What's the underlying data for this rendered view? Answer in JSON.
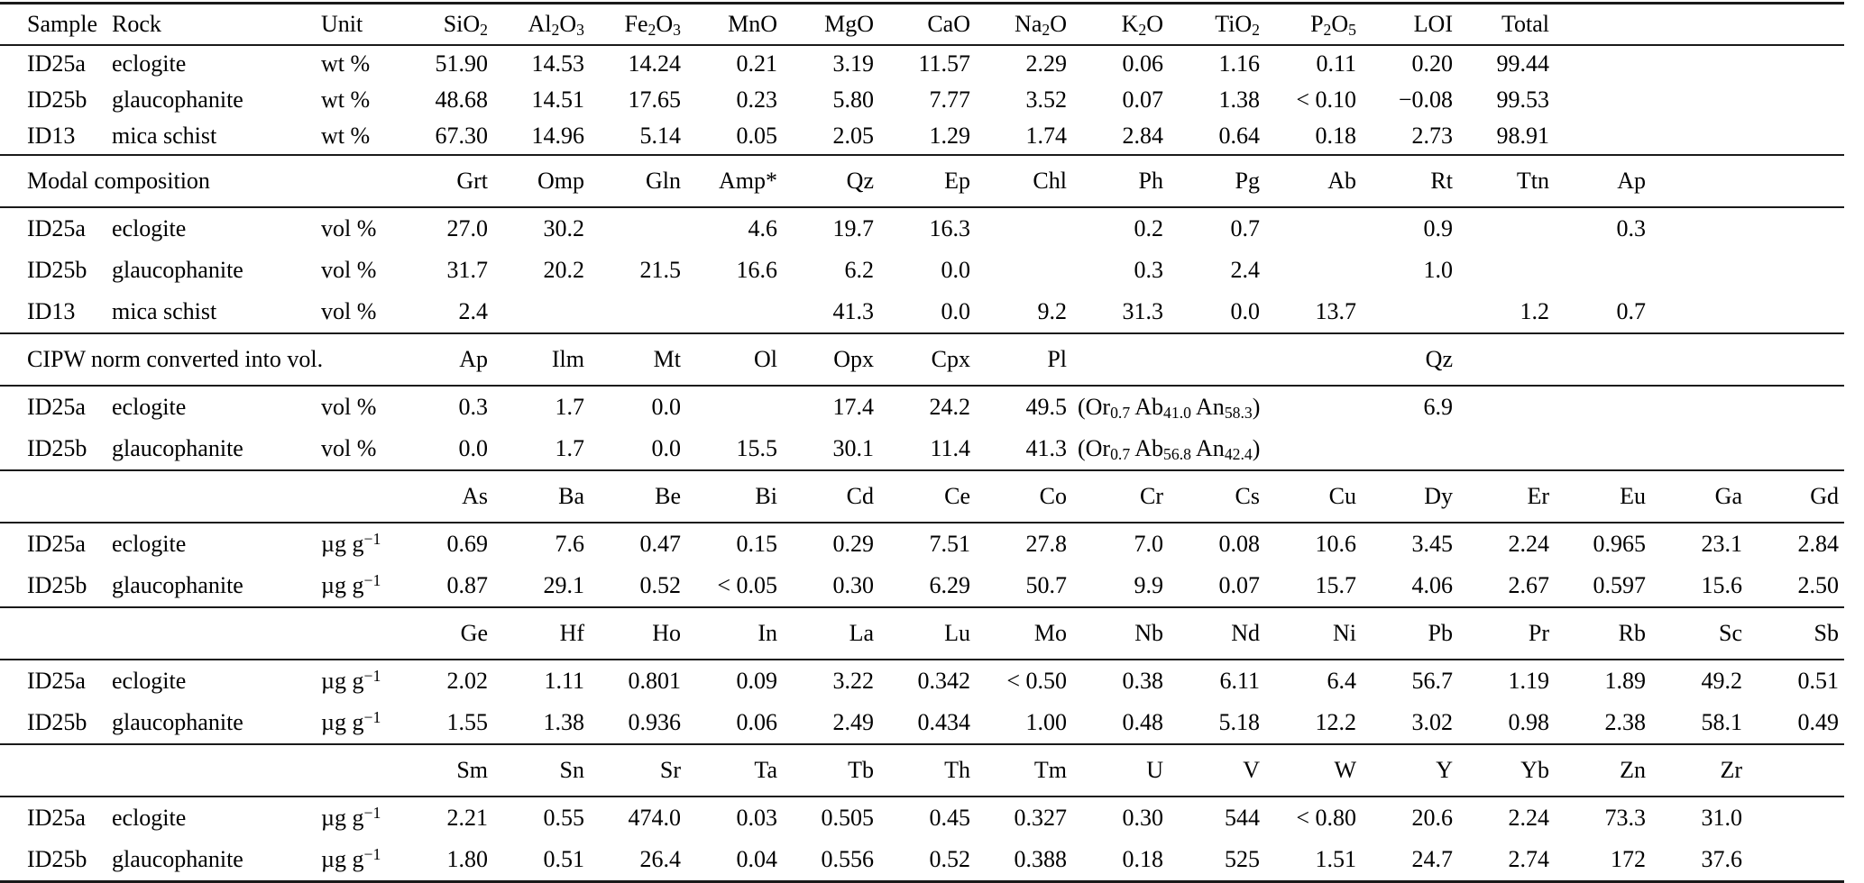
{
  "table": {
    "sections": [
      {
        "id": "major-oxides",
        "label_headers": [
          "Sample",
          "Rock",
          "Unit"
        ],
        "columns": [
          "SiO_2_",
          "Al_2_O_3_",
          "Fe_2_O_3_",
          "MnO",
          "MgO",
          "CaO",
          "Na_2_O",
          "K_2_O",
          "TiO_2_",
          "P_2_O_5_",
          "LOI",
          "Total",
          "",
          "",
          ""
        ],
        "rows": [
          {
            "sample": "ID25a",
            "rock": "eclogite",
            "unit": "wt %",
            "values": [
              "51.90",
              "14.53",
              "14.24",
              "0.21",
              "3.19",
              "11.57",
              "2.29",
              "0.06",
              "1.16",
              "0.11",
              "0.20",
              "99.44",
              "",
              "",
              ""
            ]
          },
          {
            "sample": "ID25b",
            "rock": "glaucophanite",
            "unit": "wt %",
            "values": [
              "48.68",
              "14.51",
              "17.65",
              "0.23",
              "5.80",
              "7.77",
              "3.52",
              "0.07",
              "1.38",
              "< 0.10",
              "−0.08",
              "99.53",
              "",
              "",
              ""
            ]
          },
          {
            "sample": "ID13",
            "rock": "mica schist",
            "unit": "wt %",
            "values": [
              "67.30",
              "14.96",
              "5.14",
              "0.05",
              "2.05",
              "1.29",
              "1.74",
              "2.84",
              "0.64",
              "0.18",
              "2.73",
              "98.91",
              "",
              "",
              ""
            ]
          }
        ]
      },
      {
        "id": "modal-composition",
        "title": "Modal composition",
        "columns": [
          "Grt",
          "Omp",
          "Gln",
          "Amp*",
          "Qz",
          "Ep",
          "Chl",
          "Ph",
          "Pg",
          "Ab",
          "Rt",
          "Ttn",
          "Ap",
          "",
          ""
        ],
        "rows": [
          {
            "sample": "ID25a",
            "rock": "eclogite",
            "unit": "vol %",
            "values": [
              "27.0",
              "30.2",
              "",
              "4.6",
              "19.7",
              "16.3",
              "",
              "0.2",
              "0.7",
              "",
              "0.9",
              "",
              "0.3",
              "",
              ""
            ]
          },
          {
            "sample": "ID25b",
            "rock": "glaucophanite",
            "unit": "vol %",
            "values": [
              "31.7",
              "20.2",
              "21.5",
              "16.6",
              "6.2",
              "0.0",
              "",
              "0.3",
              "2.4",
              "",
              "1.0",
              "",
              "",
              "",
              ""
            ]
          },
          {
            "sample": "ID13",
            "rock": "mica schist",
            "unit": "vol %",
            "values": [
              "2.4",
              "",
              "",
              "",
              "41.3",
              "0.0",
              "9.2",
              "31.3",
              "0.0",
              "13.7",
              "",
              "1.2",
              "0.7",
              "",
              ""
            ]
          }
        ]
      },
      {
        "id": "cipw-norm",
        "title": "CIPW norm converted into vol.",
        "columns": [
          "Ap",
          "Ilm",
          "Mt",
          "Ol",
          "Opx",
          "Cpx",
          "Pl",
          "",
          "",
          "",
          "Qz",
          "",
          "",
          "",
          ""
        ],
        "rows": [
          {
            "sample": "ID25a",
            "rock": "eclogite",
            "unit": "vol %",
            "values": [
              "0.3",
              "1.7",
              "0.0",
              "",
              "17.4",
              "24.2",
              "49.5",
              {
                "text": "(Or_0.7_ Ab_41.0_ An_58.3_)",
                "span": 3,
                "align": "left"
              },
              "6.9",
              "",
              "",
              "",
              ""
            ]
          },
          {
            "sample": "ID25b",
            "rock": "glaucophanite",
            "unit": "vol %",
            "values": [
              "0.0",
              "1.7",
              "0.0",
              "15.5",
              "30.1",
              "11.4",
              "41.3",
              {
                "text": "(Or_0.7_ Ab_56.8_ An_42.4_)",
                "span": 3,
                "align": "left"
              },
              "",
              "",
              "",
              "",
              ""
            ]
          }
        ]
      },
      {
        "id": "trace-elements-1",
        "title": "",
        "columns": [
          "As",
          "Ba",
          "Be",
          "Bi",
          "Cd",
          "Ce",
          "Co",
          "Cr",
          "Cs",
          "Cu",
          "Dy",
          "Er",
          "Eu",
          "Ga",
          "Gd"
        ],
        "rows": [
          {
            "sample": "ID25a",
            "rock": "eclogite",
            "unit": "µg g^−1^",
            "values": [
              "0.69",
              "7.6",
              "0.47",
              "0.15",
              "0.29",
              "7.51",
              "27.8",
              "7.0",
              "0.08",
              "10.6",
              "3.45",
              "2.24",
              "0.965",
              "23.1",
              "2.84"
            ]
          },
          {
            "sample": "ID25b",
            "rock": "glaucophanite",
            "unit": "µg g^−1^",
            "values": [
              "0.87",
              "29.1",
              "0.52",
              "< 0.05",
              "0.30",
              "6.29",
              "50.7",
              "9.9",
              "0.07",
              "15.7",
              "4.06",
              "2.67",
              "0.597",
              "15.6",
              "2.50"
            ]
          }
        ]
      },
      {
        "id": "trace-elements-2",
        "title": "",
        "columns": [
          "Ge",
          "Hf",
          "Ho",
          "In",
          "La",
          "Lu",
          "Mo",
          "Nb",
          "Nd",
          "Ni",
          "Pb",
          "Pr",
          "Rb",
          "Sc",
          "Sb"
        ],
        "rows": [
          {
            "sample": "ID25a",
            "rock": "eclogite",
            "unit": "µg g^−1^",
            "values": [
              "2.02",
              "1.11",
              "0.801",
              "0.09",
              "3.22",
              "0.342",
              "< 0.50",
              "0.38",
              "6.11",
              "6.4",
              "56.7",
              "1.19",
              "1.89",
              "49.2",
              "0.51"
            ]
          },
          {
            "sample": "ID25b",
            "rock": "glaucophanite",
            "unit": "µg g^−1^",
            "values": [
              "1.55",
              "1.38",
              "0.936",
              "0.06",
              "2.49",
              "0.434",
              "1.00",
              "0.48",
              "5.18",
              "12.2",
              "3.02",
              "0.98",
              "2.38",
              "58.1",
              "0.49"
            ]
          }
        ]
      },
      {
        "id": "trace-elements-3",
        "title": "",
        "columns": [
          "Sm",
          "Sn",
          "Sr",
          "Ta",
          "Tb",
          "Th",
          "Tm",
          "U",
          "V",
          "W",
          "Y",
          "Yb",
          "Zn",
          "Zr",
          ""
        ],
        "rows": [
          {
            "sample": "ID25a",
            "rock": "eclogite",
            "unit": "µg g^−1^",
            "values": [
              "2.21",
              "0.55",
              "474.0",
              "0.03",
              "0.505",
              "0.45",
              "0.327",
              "0.30",
              "544",
              "< 0.80",
              "20.6",
              "2.24",
              "73.3",
              "31.0",
              ""
            ]
          },
          {
            "sample": "ID25b",
            "rock": "glaucophanite",
            "unit": "µg g^−1^",
            "values": [
              "1.80",
              "0.51",
              "26.4",
              "0.04",
              "0.556",
              "0.52",
              "0.388",
              "0.18",
              "525",
              "1.51",
              "24.7",
              "2.74",
              "172",
              "37.6",
              ""
            ]
          }
        ]
      }
    ]
  }
}
